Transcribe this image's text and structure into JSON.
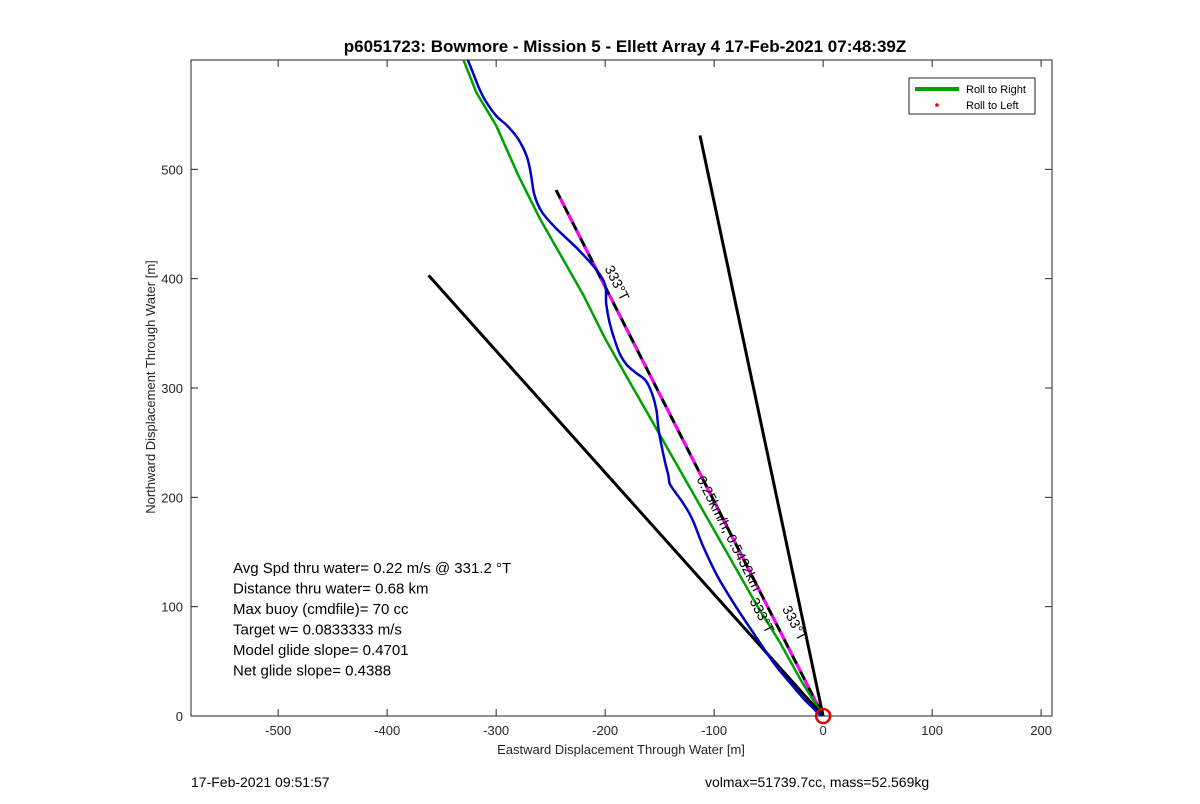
{
  "footer": {
    "left": "17-Feb-2021 09:51:57",
    "right": "volmax=51739.7cc, mass=52.569kg"
  },
  "chart_data": {
    "type": "line",
    "title": "p6051723: Bowmore - Mission 5 - Ellett Array 4 17-Feb-2021 07:48:39Z",
    "xlabel": "Eastward Displacement Through Water [m]",
    "ylabel": "Northward Displacement Through Water [m]",
    "xlim": [
      -580,
      210
    ],
    "ylim": [
      0,
      600
    ],
    "xticks": [
      -500,
      -400,
      -300,
      -200,
      -100,
      0,
      100,
      200
    ],
    "yticks": [
      0,
      100,
      200,
      300,
      400,
      500
    ],
    "grid": false,
    "legend": {
      "placement": "top-right",
      "entries": [
        {
          "label": "Roll to Right",
          "color": "#00a000",
          "style": "line"
        },
        {
          "label": "Roll to Left",
          "color": "#ff0000",
          "style": "dot"
        }
      ]
    },
    "colors": {
      "track": "#0000c8",
      "roll_right": "#00a000",
      "dash_magenta": "#ff00ff",
      "marker": "#e00000"
    },
    "series": [
      {
        "id": "glider-track",
        "color": "#0000c8",
        "x": [
          -326,
          -320,
          -316,
          -310,
          -300,
          -290,
          -280,
          -272,
          -268,
          -265,
          -258,
          -245,
          -225,
          -208,
          -200,
          -199,
          -196,
          -191,
          -186,
          -180,
          -172,
          -163,
          -157,
          -153,
          -151,
          -148,
          -145,
          -142,
          -141,
          -138,
          -133,
          -128,
          -120,
          -110,
          -97,
          -80,
          -60,
          -45,
          -30,
          -18,
          -8,
          -2
        ],
        "y": [
          600,
          585,
          575,
          563,
          549,
          540,
          528,
          512,
          495,
          477,
          461,
          446,
          427,
          408,
          394,
          377,
          360,
          343,
          330,
          321,
          314,
          307,
          295,
          280,
          262,
          246,
          232,
          220,
          213,
          208,
          201,
          194,
          180,
          155,
          128,
          100,
          70,
          48,
          30,
          16,
          6,
          0
        ]
      },
      {
        "id": "roll-right-track",
        "color": "#00a000",
        "x": [
          -330,
          -318,
          -300,
          -280,
          -260,
          -240,
          -220,
          -200,
          -180,
          -160,
          -140,
          -120,
          -100,
          -80,
          -60,
          -40,
          -20,
          0
        ],
        "y": [
          600,
          570,
          540,
          495,
          455,
          420,
          385,
          345,
          310,
          275,
          240,
          205,
          170,
          135,
          100,
          68,
          32,
          0
        ]
      }
    ],
    "reference_lines": [
      {
        "id": "heading-line-right",
        "color": "#000000",
        "x": [
          -113,
          0
        ],
        "y": [
          531,
          0
        ]
      },
      {
        "id": "heading-line-left",
        "color": "#000000",
        "x": [
          -362,
          0
        ],
        "y": [
          403,
          0
        ]
      },
      {
        "id": "course-line-333",
        "color": "#000000",
        "dashed_overlay": "#ff00ff",
        "x": [
          -245,
          0
        ],
        "y": [
          481,
          0
        ]
      }
    ],
    "annotations": [
      {
        "text": "333°T",
        "x": -193,
        "y": 394
      },
      {
        "text": "0.25km/h, 0.5432km",
        "x": -90,
        "y": 165
      },
      {
        "text": "333°T",
        "x": -30,
        "y": 83
      },
      {
        "text": "333°T",
        "x": -60,
        "y": 90
      }
    ],
    "start_marker": {
      "x": 0,
      "y": 0,
      "color": "#e00000"
    },
    "stats": [
      "Avg Spd thru water=  0.22 m/s @ 331.2 °T",
      "Distance thru water=  0.68 km",
      "Max buoy (cmdfile)= 70 cc",
      "Target w= 0.0833333 m/s",
      "Model glide slope= 0.4701",
      "Net glide slope= 0.4388"
    ]
  }
}
